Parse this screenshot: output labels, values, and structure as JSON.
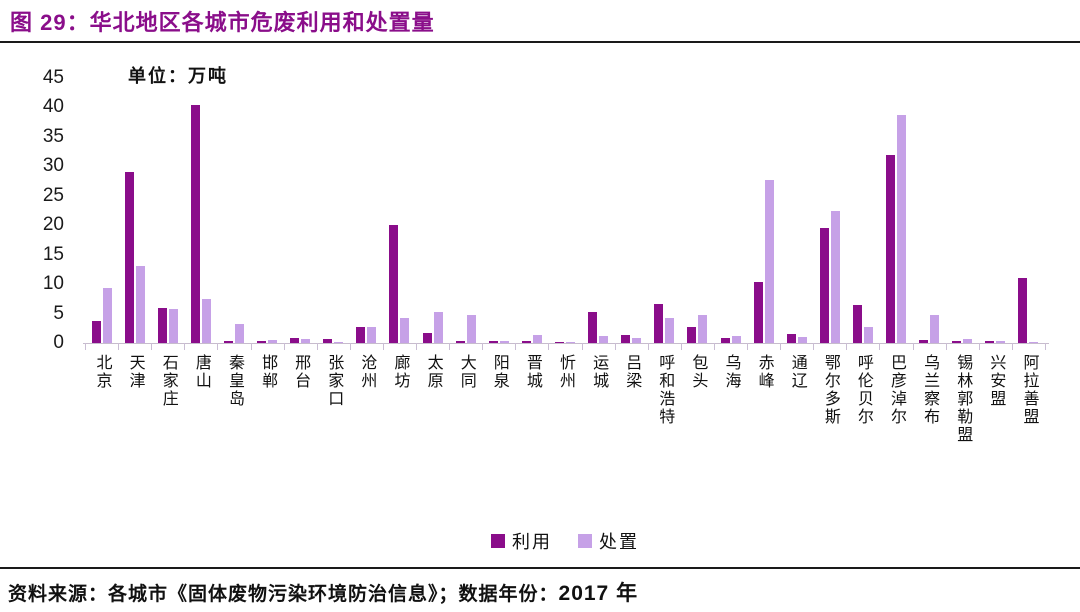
{
  "figure": {
    "title": "图 29：华北地区各城市危废利用和处置量",
    "unit_label": "单位：万吨",
    "source_text": "资料来源：各城市《固体废物污染环境防治信息》；数据年份：",
    "source_year": "2017 年"
  },
  "colors": {
    "title_accent": "#8A0E8A",
    "bar_utilization": "#8A0D8A",
    "bar_disposal": "#C6A1E7",
    "axis": "#C7BCCD",
    "text": "#111111"
  },
  "chart_data": {
    "type": "bar",
    "title": "华北地区各城市危废利用和处置量",
    "unit": "万吨",
    "xlabel": "",
    "ylabel": "",
    "ylim": [
      0,
      45
    ],
    "yticks": [
      45,
      40,
      35,
      30,
      25,
      20,
      15,
      10,
      5,
      0
    ],
    "grid": false,
    "legend_position": "bottom",
    "categories": [
      "北京",
      "天津",
      "石家庄",
      "唐山",
      "秦皇岛",
      "邯郸",
      "邢台",
      "张家口",
      "沧州",
      "廊坊",
      "太原",
      "大同",
      "阳泉",
      "晋城",
      "忻州",
      "运城",
      "吕梁",
      "呼和浩特",
      "包头",
      "乌海",
      "赤峰",
      "通辽",
      "鄂尔多斯",
      "呼伦贝尔",
      "巴彦淖尔",
      "乌兰察布",
      "锡林郭勒盟",
      "兴安盟",
      "阿拉善盟"
    ],
    "series": [
      {
        "name": "利用",
        "color": "#8A0D8A",
        "values": [
          3.7,
          29,
          6,
          40.5,
          0.3,
          0.3,
          0.9,
          0.6,
          2.8,
          20,
          1.7,
          0.3,
          0.3,
          0.3,
          0.2,
          5.2,
          1.4,
          6.6,
          2.8,
          0.8,
          10.3,
          1.5,
          19.5,
          6.4,
          32,
          0.5,
          0.4,
          0.4,
          11
        ]
      },
      {
        "name": "处置",
        "color": "#C6A1E7",
        "values": [
          9.3,
          13,
          5.8,
          7.5,
          3.2,
          0.5,
          0.7,
          0.2,
          2.8,
          4.3,
          5.2,
          4.7,
          0.4,
          1.3,
          0.2,
          1.2,
          0.8,
          4.2,
          4.7,
          1.2,
          27.7,
          1,
          22.5,
          2.8,
          38.8,
          4.7,
          0.6,
          0.3,
          0.2
        ]
      }
    ]
  }
}
